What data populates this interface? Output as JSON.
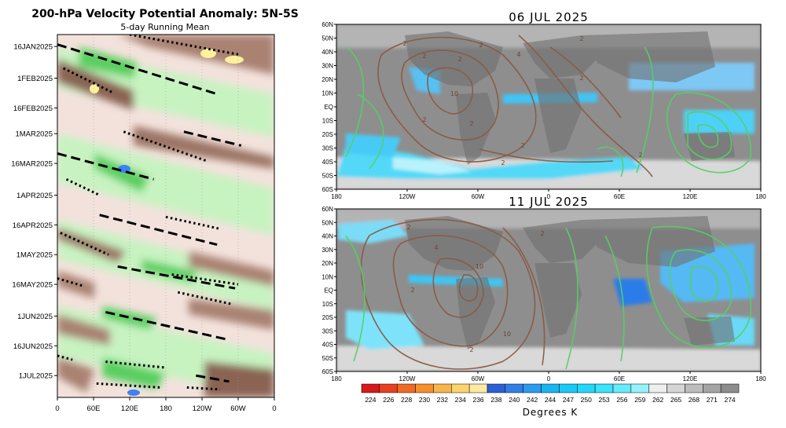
{
  "hovmoller": {
    "title": "200-hPa Velocity Potential Anomaly: 5N-5S",
    "subtitle": "5-day Running Mean",
    "date_labels": [
      "16JAN2025",
      "1FEB2025",
      "16FEB2025",
      "1MAR2025",
      "16MAR2025",
      "1APR2025",
      "16APR2025",
      "1MAY2025",
      "16MAY2025",
      "1JUN2025",
      "16JUN2025",
      "1JUL2025"
    ],
    "lon_labels": [
      "0",
      "60E",
      "120E",
      "180",
      "120W",
      "60W",
      "0"
    ],
    "colors": {
      "positive_dark": "#6e4a3a",
      "positive_mid": "#a47e6d",
      "positive_light": "#d7c0b3",
      "positive_faint": "#f3e2dc",
      "negative_light": "#b8f0b2",
      "negative_mid": "#5fd467",
      "negative_dark": "#25a93d",
      "extreme_pos": "#fff29a",
      "extreme_neg": "#3b82f6"
    }
  },
  "maps": [
    {
      "title": "06 JUL 2025"
    },
    {
      "title": "11 JUL 2025"
    }
  ],
  "map_axes": {
    "lat_labels": [
      "60N",
      "50N",
      "40N",
      "30N",
      "20N",
      "10N",
      "EQ",
      "10S",
      "20S",
      "30S",
      "40S",
      "50S",
      "60S"
    ],
    "lon_labels": [
      "180",
      "120W",
      "60W",
      "0",
      "60E",
      "120E",
      "180"
    ]
  },
  "colorbar": {
    "label": "Degrees K",
    "ticks": [
      "224",
      "226",
      "228",
      "230",
      "232",
      "234",
      "236",
      "238",
      "240",
      "242",
      "244",
      "247",
      "250",
      "253",
      "256",
      "259",
      "262",
      "265",
      "268",
      "271",
      "274"
    ],
    "colors": [
      "#d7191c",
      "#e8401e",
      "#f06a22",
      "#f7902a",
      "#f9b648",
      "#fbd46d",
      "#fde9a0",
      "#2b5fd8",
      "#2f7fe6",
      "#2a9cf0",
      "#19b5f3",
      "#1ac9f7",
      "#22d8fa",
      "#3be3fb",
      "#66ebfc",
      "#96f2fd",
      "#eeeeee",
      "#d5d5d5",
      "#bdbdbd",
      "#a5a5a5",
      "#8c8c8c"
    ]
  },
  "chart_data": [
    {
      "type": "heatmap",
      "title": "200-hPa Velocity Potential Anomaly: 5N-5S",
      "subtitle": "5-day Running Mean",
      "x_ticks": [
        "0",
        "60E",
        "120E",
        "180",
        "120W",
        "60W",
        "0"
      ],
      "y_ticks": [
        "16JAN2025",
        "1FEB2025",
        "16FEB2025",
        "1MAR2025",
        "16MAR2025",
        "1APR2025",
        "16APR2025",
        "1MAY2025",
        "16MAY2025",
        "1JUN2025",
        "16JUN2025",
        "1JUL2025"
      ],
      "x_range_deg_east": [
        0,
        360
      ],
      "y_range": [
        "2025-01-10",
        "2025-07-12"
      ],
      "description_of_marks": "dashed and dotted eastward-propagating phase lines",
      "dashed_lines": [
        {
          "start": {
            "lon": 0,
            "date": "2025-01-15"
          },
          "end": {
            "lon": 265,
            "date": "2025-02-09"
          }
        },
        {
          "start": {
            "lon": 0,
            "date": "2025-03-11"
          },
          "end": {
            "lon": 160,
            "date": "2025-03-24"
          }
        },
        {
          "start": {
            "lon": 70,
            "date": "2025-04-11"
          },
          "end": {
            "lon": 265,
            "date": "2025-04-26"
          }
        },
        {
          "start": {
            "lon": 100,
            "date": "2025-05-07"
          },
          "end": {
            "lon": 295,
            "date": "2025-05-18"
          }
        },
        {
          "start": {
            "lon": 80,
            "date": "2025-05-30"
          },
          "end": {
            "lon": 285,
            "date": "2025-06-13"
          }
        },
        {
          "start": {
            "lon": 210,
            "date": "2025-02-28"
          },
          "end": {
            "lon": 305,
            "date": "2025-03-07"
          }
        },
        {
          "start": {
            "lon": 230,
            "date": "2025-07-01"
          },
          "end": {
            "lon": 285,
            "date": "2025-07-04"
          }
        }
      ],
      "dotted_lines": [
        {
          "start": {
            "lon": 120,
            "date": "2025-01-10"
          },
          "end": {
            "lon": 300,
            "date": "2025-01-20"
          }
        },
        {
          "start": {
            "lon": 10,
            "date": "2025-01-27"
          },
          "end": {
            "lon": 90,
            "date": "2025-02-08"
          }
        },
        {
          "start": {
            "lon": 110,
            "date": "2025-02-28"
          },
          "end": {
            "lon": 250,
            "date": "2025-03-15"
          }
        },
        {
          "start": {
            "lon": 15,
            "date": "2025-03-24"
          },
          "end": {
            "lon": 70,
            "date": "2025-04-01"
          }
        },
        {
          "start": {
            "lon": 180,
            "date": "2025-04-12"
          },
          "end": {
            "lon": 270,
            "date": "2025-04-18"
          }
        },
        {
          "start": {
            "lon": 5,
            "date": "2025-04-20"
          },
          "end": {
            "lon": 85,
            "date": "2025-05-01"
          }
        },
        {
          "start": {
            "lon": 190,
            "date": "2025-05-11"
          },
          "end": {
            "lon": 300,
            "date": "2025-05-16"
          }
        },
        {
          "start": {
            "lon": 0,
            "date": "2025-05-13"
          },
          "end": {
            "lon": 45,
            "date": "2025-05-17"
          }
        },
        {
          "start": {
            "lon": 200,
            "date": "2025-05-20"
          },
          "end": {
            "lon": 290,
            "date": "2025-05-26"
          }
        },
        {
          "start": {
            "lon": 0,
            "date": "2025-06-21"
          },
          "end": {
            "lon": 25,
            "date": "2025-06-23"
          }
        },
        {
          "start": {
            "lon": 80,
            "date": "2025-06-24"
          },
          "end": {
            "lon": 180,
            "date": "2025-06-27"
          }
        },
        {
          "start": {
            "lon": 65,
            "date": "2025-07-05"
          },
          "end": {
            "lon": 170,
            "date": "2025-07-07"
          }
        },
        {
          "start": {
            "lon": 215,
            "date": "2025-07-07"
          },
          "end": {
            "lon": 270,
            "date": "2025-07-08"
          }
        }
      ]
    },
    {
      "type": "heatmap",
      "title": "06 JUL 2025",
      "x_ticks": [
        "180",
        "120W",
        "60W",
        "0",
        "60E",
        "120E",
        "180"
      ],
      "y_ticks": [
        "60N",
        "50N",
        "40N",
        "30N",
        "20N",
        "10N",
        "EQ",
        "10S",
        "20S",
        "30S",
        "40S",
        "50S",
        "60S"
      ],
      "x_range_deg": [
        -180,
        180
      ],
      "y_range_deg": [
        -60,
        60
      ],
      "shading": "OLR / brightness temperature (Degrees K)",
      "contours": [
        "brown (positive)",
        "green (negative)"
      ],
      "contour_labels": [
        "2",
        "2",
        "2",
        "2",
        "4",
        "10",
        "2",
        "2",
        "2",
        "2",
        "2",
        "2",
        "2"
      ]
    },
    {
      "type": "heatmap",
      "title": "11 JUL 2025",
      "x_ticks": [
        "180",
        "120W",
        "60W",
        "0",
        "60E",
        "120E",
        "180"
      ],
      "y_ticks": [
        "60N",
        "50N",
        "40N",
        "30N",
        "20N",
        "10N",
        "EQ",
        "10S",
        "20S",
        "30S",
        "40S",
        "50S",
        "60S"
      ],
      "x_range_deg": [
        -180,
        180
      ],
      "y_range_deg": [
        -60,
        60
      ],
      "shading": "OLR / brightness temperature (Degrees K)",
      "contours": [
        "brown (positive)",
        "green (negative)"
      ],
      "contour_labels": [
        "2",
        "4",
        "10",
        "10",
        "2",
        "2",
        "2"
      ]
    },
    {
      "type": "bar",
      "title": "Degrees K",
      "categories": [
        "224",
        "226",
        "228",
        "230",
        "232",
        "234",
        "236",
        "238",
        "240",
        "242",
        "244",
        "247",
        "250",
        "253",
        "256",
        "259",
        "262",
        "265",
        "268",
        "271",
        "274"
      ]
    }
  ]
}
